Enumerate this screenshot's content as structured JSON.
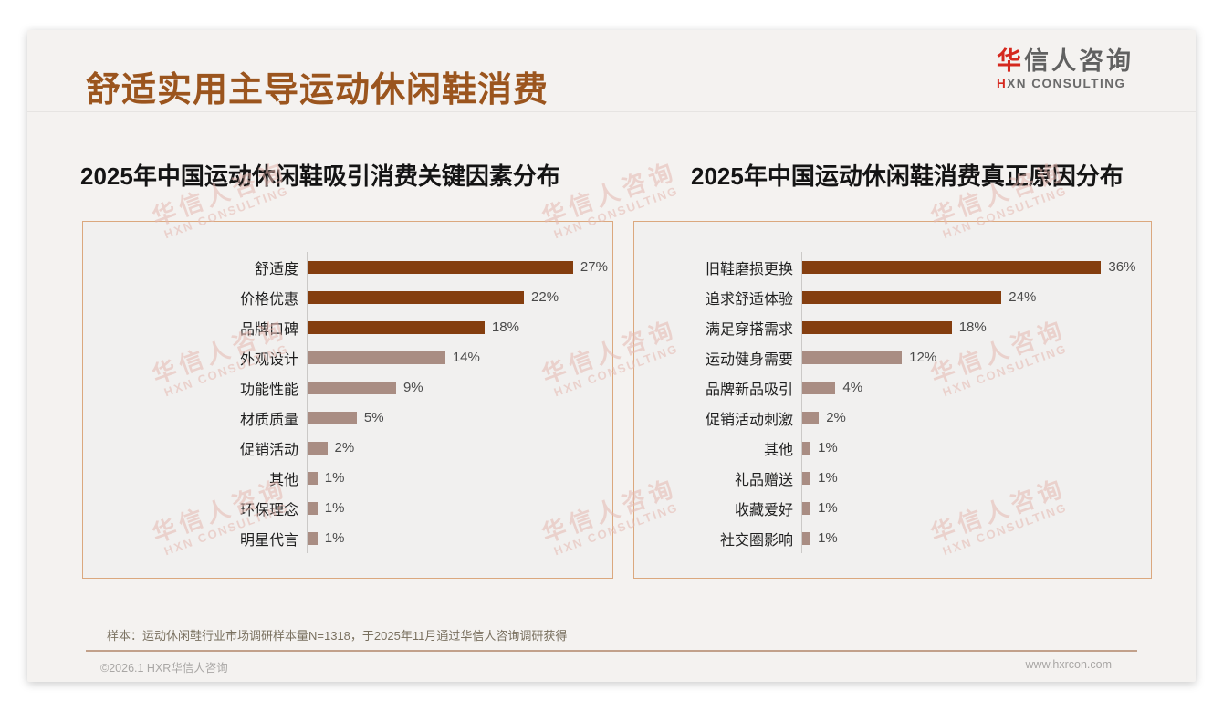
{
  "page": {
    "title": "舒适实用主导运动休闲鞋消费",
    "logo": {
      "cn_first": "华",
      "cn_rest": "信人咨询",
      "en_first": "H",
      "en_rest": "XN CONSULTING"
    },
    "watermark": {
      "line1": "华信人咨询",
      "line2": "HXN CONSULTING"
    },
    "footnote": "样本：运动休闲鞋行业市场调研样本量N=1318，于2025年11月通过华信人咨询调研获得",
    "copyright": "©2026.1 HXR华信人咨询",
    "website": "www.hxrcon.com"
  },
  "colors": {
    "title_brown": "#9B551E",
    "bar_dark": "#843E0F",
    "bar_light": "#A98D83",
    "panel_border": "#DBA87E",
    "logo_red": "#D5281E",
    "watermark_pink": "#E5B9B1"
  },
  "chart_data": [
    {
      "type": "bar",
      "orientation": "horizontal",
      "title": "2025年中国运动休闲鞋吸引消费关键因素分布",
      "categories": [
        "舒适度",
        "价格优惠",
        "品牌口碑",
        "外观设计",
        "功能性能",
        "材质质量",
        "促销活动",
        "其他",
        "环保理念",
        "明星代言"
      ],
      "values": [
        27,
        22,
        18,
        14,
        9,
        5,
        2,
        1,
        1,
        1
      ],
      "value_labels": [
        "27%",
        "22%",
        "18%",
        "14%",
        "9%",
        "5%",
        "2%",
        "1%",
        "1%",
        "1%"
      ],
      "unit": "%",
      "xlim": [
        0,
        31
      ],
      "highlight_count": 3,
      "highlight_color": "#843E0F",
      "normal_color": "#A98D83",
      "grid": false,
      "legend": false
    },
    {
      "type": "bar",
      "orientation": "horizontal",
      "title": "2025年中国运动休闲鞋消费真正原因分布",
      "categories": [
        "旧鞋磨损更换",
        "追求舒适体验",
        "满足穿搭需求",
        "运动健身需要",
        "品牌新品吸引",
        "促销活动刺激",
        "其他",
        "礼品赠送",
        "收藏爱好",
        "社交圈影响"
      ],
      "values": [
        36,
        24,
        18,
        12,
        4,
        2,
        1,
        1,
        1,
        1
      ],
      "value_labels": [
        "36%",
        "24%",
        "18%",
        "12%",
        "4%",
        "2%",
        "1%",
        "1%",
        "1%",
        "1%"
      ],
      "unit": "%",
      "xlim": [
        0,
        42
      ],
      "highlight_count": 3,
      "highlight_color": "#843E0F",
      "normal_color": "#A98D83",
      "grid": false,
      "legend": false
    }
  ]
}
